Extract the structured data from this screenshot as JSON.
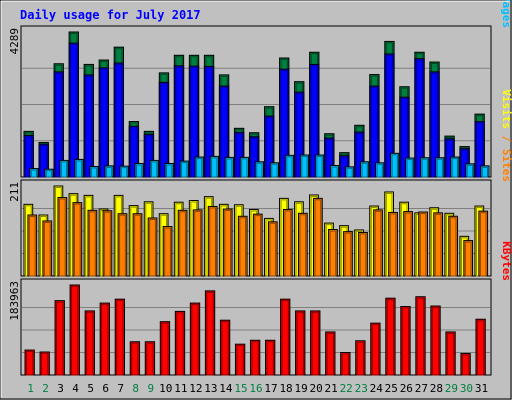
{
  "chart_data": {
    "type": "bar",
    "title": "Daily usage for July 2017",
    "categories": [
      "1",
      "2",
      "3",
      "4",
      "5",
      "6",
      "7",
      "8",
      "9",
      "10",
      "11",
      "12",
      "13",
      "14",
      "15",
      "16",
      "17",
      "18",
      "19",
      "20",
      "21",
      "22",
      "23",
      "24",
      "25",
      "26",
      "27",
      "28",
      "29",
      "30",
      "31"
    ],
    "weekend_days": [
      "1",
      "2",
      "8",
      "9",
      "15",
      "16",
      "22",
      "23",
      "29",
      "30"
    ],
    "panels": [
      {
        "name": "hits-files-pages",
        "max_label": "4289",
        "ymax": 4289,
        "side_labels": [
          {
            "text": "Pages",
            "color": "#00c0ff"
          },
          {
            "text": " / ",
            "color": "#0000ff"
          },
          {
            "text": "Files",
            "color": "#0000ff"
          },
          {
            "text": " / ",
            "color": "#0000ff"
          },
          {
            "text": "Hits",
            "color": "#008040"
          }
        ],
        "series": [
          {
            "name": "Hits",
            "color": "#008040",
            "values": [
              1350,
              1020,
              3350,
              4289,
              3330,
              3460,
              3840,
              1640,
              1350,
              3080,
              3600,
              3600,
              3600,
              3020,
              1440,
              1310,
              2080,
              3520,
              2820,
              3690,
              1280,
              720,
              1530,
              3030,
              4010,
              2670,
              3690,
              3400,
              1210,
              900,
              1860
            ]
          },
          {
            "name": "Files",
            "color": "#0000ff",
            "values": [
              1230,
              970,
              3110,
              3960,
              3020,
              3230,
              3370,
              1500,
              1260,
              2800,
              3290,
              3280,
              3270,
              2690,
              1320,
              1190,
              1800,
              3190,
              2510,
              3330,
              1150,
              630,
              1330,
              2690,
              3640,
              2360,
              3500,
              3110,
              1130,
              840,
              1640
            ]
          },
          {
            "name": "Pages",
            "color": "#00c0ff",
            "values": [
              250,
              230,
              490,
              520,
              310,
              330,
              320,
              400,
              490,
              400,
              470,
              590,
              610,
              580,
              580,
              450,
              420,
              640,
              650,
              650,
              340,
              300,
              450,
              420,
              700,
              560,
              570,
              570,
              590,
              390,
              330
            ]
          }
        ]
      },
      {
        "name": "visits-sites",
        "max_label": "211",
        "ymax": 211,
        "side_labels": [
          {
            "text": "Sites",
            "color": "#ff8000"
          },
          {
            "text": " / ",
            "color": "#ff8000"
          },
          {
            "text": "Visits",
            "color": "#ffff00"
          }
        ],
        "series": [
          {
            "name": "Visits",
            "color": "#ffff00",
            "values": [
              168,
              143,
              211,
              193,
              189,
              157,
              189,
              165,
              174,
              146,
              173,
              177,
              186,
              168,
              167,
              156,
              135,
              182,
              174,
              190,
              124,
              118,
              108,
              164,
              197,
              173,
              148,
              160,
              147,
              93,
              164
            ]
          },
          {
            "name": "Sites",
            "color": "#ff8000",
            "values": [
              143,
              129,
              184,
              172,
              154,
              153,
              146,
              146,
              136,
              116,
              154,
              155,
              163,
              157,
              140,
              145,
              127,
              156,
              147,
              182,
              109,
              104,
              102,
              155,
              149,
              151,
              150,
              148,
              140,
              83,
              152
            ]
          }
        ]
      },
      {
        "name": "kbytes",
        "max_label": "183963",
        "ymax": 183963,
        "side_labels": [
          {
            "text": "KBytes",
            "color": "#ff0000"
          }
        ],
        "series": [
          {
            "name": "KBytes",
            "color": "#ff0000",
            "values": [
              51000,
              47000,
              152000,
              183963,
              131000,
              147000,
              155000,
              68000,
              68000,
              109000,
              130000,
              147000,
              172000,
              112000,
              63000,
              71000,
              71000,
              155000,
              131000,
              131000,
              88000,
              46000,
              70000,
              106000,
              157000,
              140000,
              160000,
              141000,
              88000,
              44000,
              114000
            ]
          }
        ]
      }
    ]
  }
}
